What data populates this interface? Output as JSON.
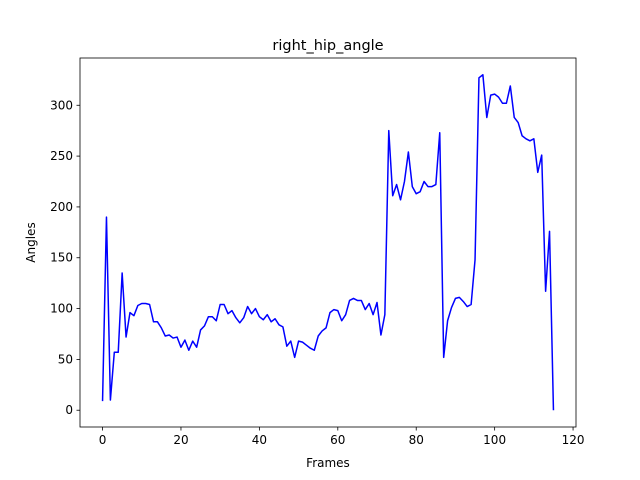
{
  "chart_data": {
    "type": "line",
    "title": "right_hip_angle",
    "xlabel": "Frames",
    "ylabel": "Angles",
    "xlim": [
      -5.75,
      120.75
    ],
    "ylim": [
      -16.5,
      346.5
    ],
    "xticks": [
      0,
      20,
      40,
      60,
      80,
      100,
      120
    ],
    "yticks": [
      0,
      50,
      100,
      150,
      200,
      250,
      300
    ],
    "grid": false,
    "series": [
      {
        "name": "right_hip_angle",
        "color": "#0000ff",
        "x": [
          0,
          1,
          2,
          3,
          4,
          5,
          6,
          7,
          8,
          9,
          10,
          11,
          12,
          13,
          14,
          15,
          16,
          17,
          18,
          19,
          20,
          21,
          22,
          23,
          24,
          25,
          26,
          27,
          28,
          29,
          30,
          31,
          32,
          33,
          34,
          35,
          36,
          37,
          38,
          39,
          40,
          41,
          42,
          43,
          44,
          45,
          46,
          47,
          48,
          49,
          50,
          51,
          52,
          53,
          54,
          55,
          56,
          57,
          58,
          59,
          60,
          61,
          62,
          63,
          64,
          65,
          66,
          67,
          68,
          69,
          70,
          71,
          72,
          73,
          74,
          75,
          76,
          77,
          78,
          79,
          80,
          81,
          82,
          83,
          84,
          85,
          86,
          87,
          88,
          89,
          90,
          91,
          92,
          93,
          94,
          95,
          96,
          97,
          98,
          99,
          100,
          101,
          102,
          103,
          104,
          105,
          106,
          107,
          108,
          109,
          110,
          111,
          112,
          113,
          114,
          115
        ],
        "values": [
          9,
          190,
          10,
          57,
          57,
          135,
          72,
          96,
          93,
          103,
          105,
          105,
          104,
          87,
          87,
          81,
          73,
          74,
          71,
          72,
          62,
          69,
          59,
          68,
          62,
          79,
          83,
          92,
          92,
          88,
          104,
          104,
          95,
          98,
          91,
          86,
          91,
          102,
          95,
          100,
          92,
          89,
          94,
          87,
          90,
          84,
          82,
          63,
          68,
          52,
          68,
          67,
          64,
          61,
          59,
          73,
          78,
          81,
          96,
          99,
          98,
          88,
          94,
          108,
          110,
          108,
          108,
          99,
          105,
          94,
          106,
          74,
          94,
          275,
          211,
          222,
          207,
          225,
          254,
          220,
          213,
          215,
          225,
          220,
          220,
          222,
          273,
          52,
          88,
          101,
          110,
          111,
          107,
          102,
          104,
          148,
          327,
          330,
          288,
          310,
          311,
          308,
          302,
          302,
          319,
          288,
          283,
          270,
          267,
          265,
          267,
          234,
          251,
          117,
          176,
          0
        ]
      }
    ]
  }
}
